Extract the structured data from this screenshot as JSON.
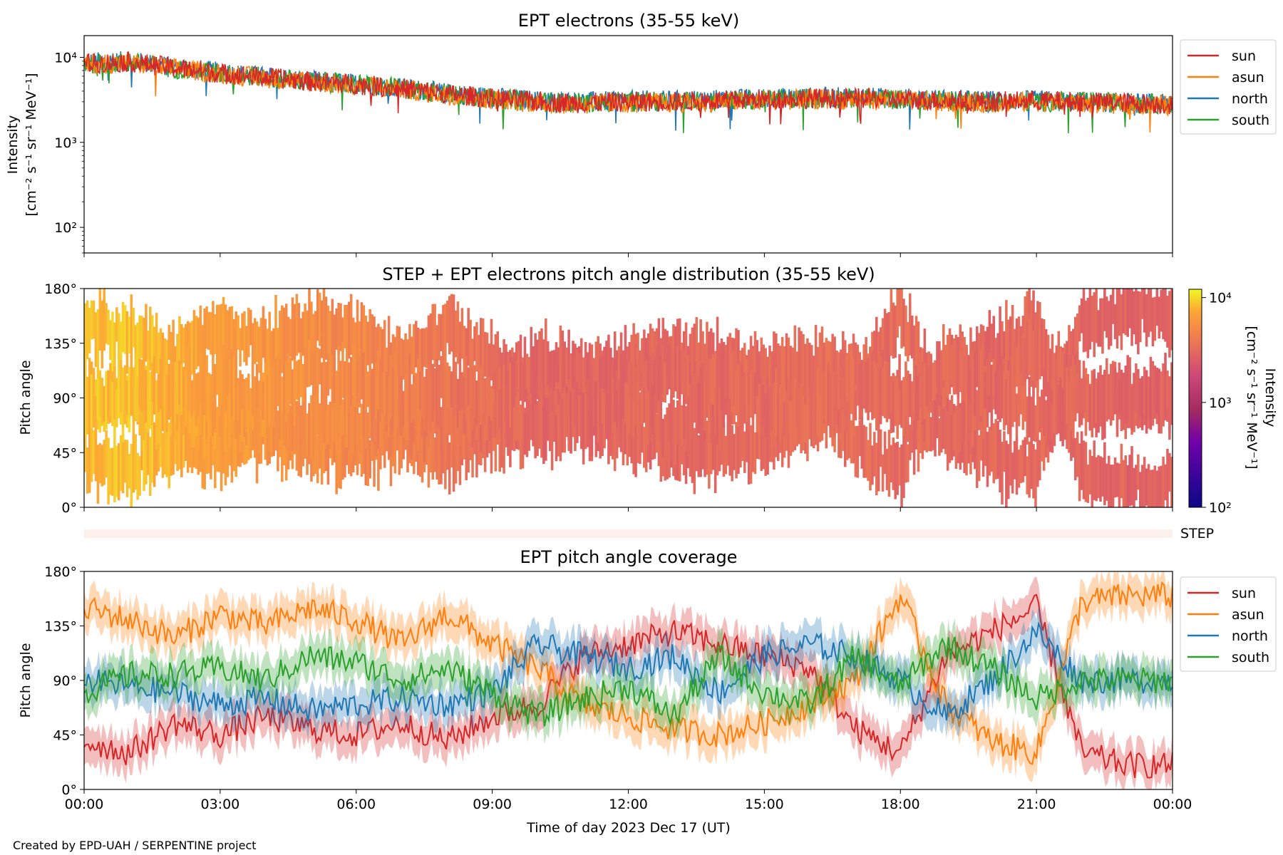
{
  "credit": "Created by EPD-UAH / SERPENTINE project",
  "colors": {
    "sun": "#d62728",
    "asun": "#ff7f0e",
    "north": "#1f77b4",
    "south": "#2ca02c",
    "step_band": "#fdf0ea"
  },
  "legend": [
    "sun",
    "asun",
    "north",
    "south"
  ],
  "x_axis": {
    "label": "Time of day 2023 Dec 17 (UT)",
    "ticks": [
      "00:00",
      "03:00",
      "06:00",
      "09:00",
      "12:00",
      "15:00",
      "18:00",
      "21:00",
      "00:00"
    ]
  },
  "colorbar": {
    "label_line1": "Intensity",
    "label_line2": "[cm⁻² s⁻¹ sr⁻¹ MeV⁻¹]",
    "ticks": [
      "10⁴",
      "10³",
      "10²"
    ],
    "range": [
      100,
      12000
    ],
    "scale": "log",
    "colormap": "plasma"
  },
  "step_label": "STEP",
  "chart_data": [
    {
      "type": "line",
      "title": "EPT electrons (35-55 keV)",
      "ylabel_line1": "Intensity",
      "ylabel_line2": "[cm⁻² s⁻¹ sr⁻¹ MeV⁻¹]",
      "yscale": "log",
      "ylim": [
        50,
        18000
      ],
      "yticks": [
        "10⁴",
        "10³",
        "10²"
      ],
      "xlim_hours": [
        0,
        24
      ],
      "legend_position": "outside-right-top",
      "x_hours": [
        0,
        1,
        2,
        3,
        4,
        5,
        6,
        7,
        8,
        9,
        10,
        11,
        12,
        13,
        14,
        15,
        16,
        17,
        18,
        19,
        20,
        21,
        22,
        23,
        24
      ],
      "series": [
        {
          "name": "sun",
          "values": [
            8500,
            8800,
            7500,
            6500,
            5800,
            5200,
            4800,
            4300,
            3700,
            3300,
            3000,
            2900,
            3000,
            3000,
            3100,
            3200,
            3300,
            3300,
            3200,
            3100,
            3000,
            3100,
            3000,
            2900,
            2800
          ]
        },
        {
          "name": "asun",
          "values": [
            8200,
            8600,
            7300,
            6400,
            5700,
            5100,
            4700,
            4200,
            3600,
            3200,
            2900,
            2800,
            2900,
            2900,
            3000,
            3100,
            3200,
            3200,
            3100,
            3000,
            2900,
            3000,
            2900,
            2800,
            2700
          ]
        },
        {
          "name": "north",
          "values": [
            8700,
            9000,
            7700,
            6700,
            5900,
            5300,
            4900,
            4400,
            3800,
            3400,
            3100,
            3000,
            3100,
            3100,
            3200,
            3300,
            3400,
            3400,
            3300,
            3200,
            3100,
            3100,
            3000,
            2900,
            2800
          ]
        },
        {
          "name": "south",
          "values": [
            8400,
            8700,
            7400,
            6500,
            5800,
            5200,
            4800,
            4300,
            3700,
            3300,
            3000,
            2900,
            3000,
            3000,
            3100,
            3200,
            3300,
            3300,
            3200,
            3100,
            3000,
            3000,
            3000,
            2900,
            2800
          ]
        }
      ]
    },
    {
      "type": "heatmap",
      "title": "STEP + EPT electrons pitch angle distribution (35-55 keV)",
      "ylabel": "Pitch angle",
      "ylim": [
        0,
        180
      ],
      "yticks": [
        "0°",
        "45°",
        "90°",
        "135°",
        "180°"
      ],
      "xlim_hours": [
        0,
        24
      ],
      "x_hours": [
        0,
        1,
        2,
        3,
        4,
        5,
        6,
        7,
        8,
        9,
        10,
        11,
        12,
        13,
        14,
        15,
        16,
        17,
        18,
        19,
        20,
        21,
        22,
        23,
        24
      ],
      "intensity": [
        8500,
        8800,
        7500,
        6500,
        5800,
        5200,
        4800,
        4300,
        3700,
        3300,
        3000,
        2900,
        3000,
        3000,
        3100,
        3200,
        3300,
        3300,
        3200,
        3100,
        3000,
        3100,
        3000,
        2900,
        2800
      ]
    },
    {
      "type": "line",
      "title": "EPT pitch angle coverage",
      "ylabel": "Pitch angle",
      "ylim": [
        0,
        180
      ],
      "yticks": [
        "0°",
        "45°",
        "90°",
        "135°",
        "180°"
      ],
      "xlim_hours": [
        0,
        24
      ],
      "legend_position": "outside-right-top",
      "shaded_spread_deg": 15,
      "x_hours": [
        0,
        1,
        2,
        3,
        4,
        5,
        6,
        7,
        8,
        9,
        10,
        11,
        12,
        13,
        14,
        15,
        16,
        17,
        18,
        19,
        20,
        21,
        22,
        23,
        24
      ],
      "series": [
        {
          "name": "sun",
          "values": [
            40,
            30,
            55,
            45,
            60,
            50,
            45,
            55,
            40,
            60,
            70,
            110,
            120,
            130,
            120,
            110,
            100,
            50,
            30,
            110,
            130,
            150,
            30,
            20,
            20
          ]
        },
        {
          "name": "asun",
          "values": [
            150,
            140,
            125,
            145,
            135,
            150,
            140,
            120,
            145,
            120,
            100,
            70,
            60,
            50,
            45,
            55,
            70,
            90,
            160,
            70,
            40,
            30,
            155,
            160,
            160
          ]
        },
        {
          "name": "north",
          "values": [
            90,
            85,
            80,
            70,
            75,
            65,
            70,
            75,
            70,
            80,
            120,
            110,
            100,
            110,
            80,
            110,
            120,
            110,
            90,
            60,
            90,
            130,
            90,
            90,
            90
          ]
        },
        {
          "name": "south",
          "values": [
            80,
            95,
            95,
            100,
            90,
            110,
            105,
            90,
            100,
            80,
            60,
            75,
            85,
            60,
            110,
            80,
            70,
            110,
            85,
            120,
            100,
            75,
            90,
            90,
            90
          ]
        }
      ]
    }
  ]
}
